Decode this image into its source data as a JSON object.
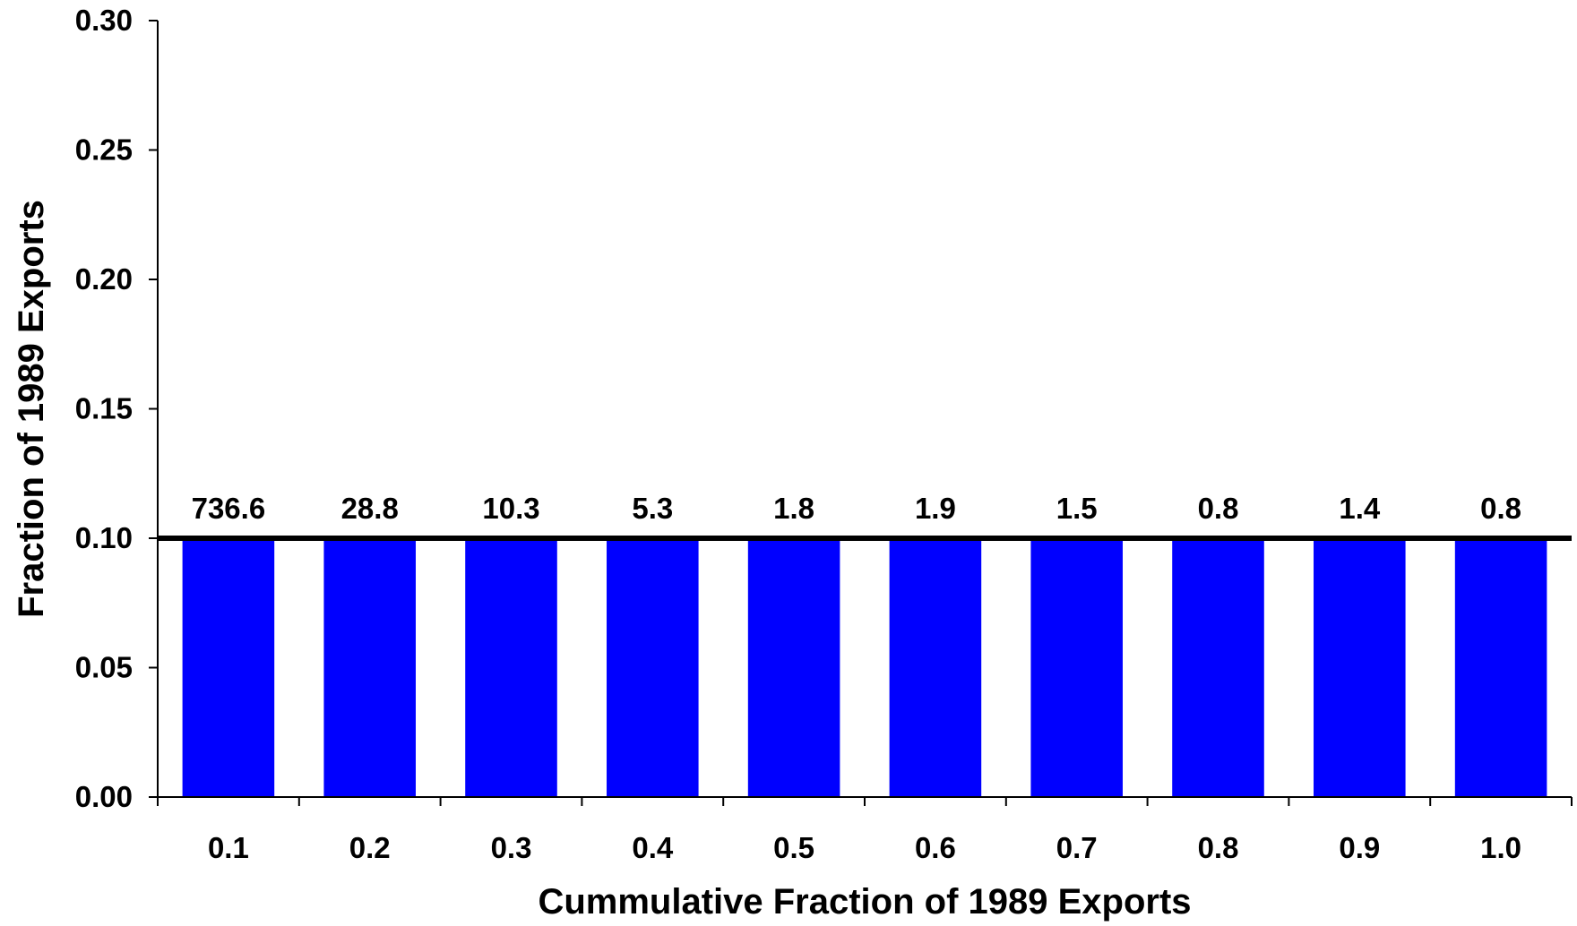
{
  "chart_data": {
    "type": "bar",
    "title": "",
    "xlabel": "Cummulative Fraction of 1989 Exports",
    "ylabel": "Fraction of 1989 Exports",
    "categories": [
      "0.1",
      "0.2",
      "0.3",
      "0.4",
      "0.5",
      "0.6",
      "0.7",
      "0.8",
      "0.9",
      "1.0"
    ],
    "values": [
      0.1,
      0.1,
      0.1,
      0.1,
      0.1,
      0.1,
      0.1,
      0.1,
      0.1,
      0.1
    ],
    "data_labels": [
      "736.6",
      "28.8",
      "10.3",
      "5.3",
      "1.8",
      "1.9",
      "1.5",
      "0.8",
      "1.4",
      "0.8"
    ],
    "reference_line": 0.1,
    "ylim": [
      0,
      0.3
    ],
    "yticks": [
      "0.00",
      "0.05",
      "0.10",
      "0.15",
      "0.20",
      "0.25",
      "0.30"
    ],
    "grid": false,
    "legend": "none",
    "colors": {
      "bar": "#0000ff",
      "reference_line": "#000000",
      "axis": "#000000"
    }
  }
}
